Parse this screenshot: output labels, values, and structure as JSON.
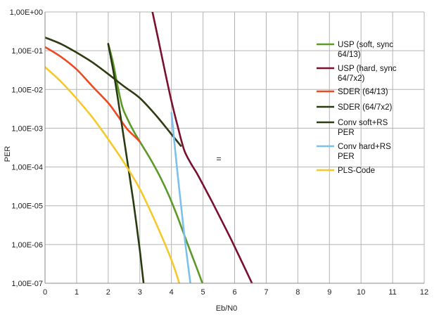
{
  "chart_data": {
    "type": "line",
    "title": "",
    "xlabel": "Eb/N0",
    "ylabel": "PER",
    "y_scale": "log",
    "xlim": [
      0,
      12
    ],
    "ylim": [
      1e-07,
      1
    ],
    "x_ticks": [
      "0",
      "1",
      "2",
      "3",
      "4",
      "5",
      "6",
      "7",
      "8",
      "9",
      "10",
      "11",
      "12"
    ],
    "y_ticks": [
      "1,00E-07",
      "1,00E-06",
      "1,00E-05",
      "1,00E-04",
      "1,00E-03",
      "1,00E-02",
      "1,00E-01",
      "1,00E+00"
    ],
    "grid": true,
    "legend_position": "right",
    "annotation": "=",
    "series": [
      {
        "name": "USP (soft, sync 64/13)",
        "color": "#5b9a26",
        "x": [
          2.0,
          2.15,
          2.3,
          2.45,
          2.6,
          2.8,
          3.0,
          3.3,
          3.6,
          3.9,
          4.2,
          4.5,
          4.8,
          4.98
        ],
        "y": [
          0.15,
          0.05,
          0.012,
          0.0035,
          0.0018,
          0.00085,
          0.00045,
          0.00018,
          6.5e-05,
          2e-05,
          5e-06,
          1.1e-06,
          2.5e-07,
          1e-07
        ]
      },
      {
        "name": "USP (hard, sync 64/7x2)",
        "color": "#7b0f2e",
        "x": [
          3.4,
          3.6,
          3.8,
          4.0,
          4.2,
          4.4,
          4.6,
          4.8,
          5.0,
          5.3,
          5.6,
          5.9,
          6.2,
          6.55
        ],
        "y": [
          1.0,
          0.17,
          0.028,
          0.005,
          0.0011,
          0.00028,
          0.00013,
          7e-05,
          3.5e-05,
          1.2e-05,
          4e-06,
          1.3e-06,
          4e-07,
          1e-07
        ]
      },
      {
        "name": "SDER (64/13)",
        "color": "#ee4a22",
        "x": [
          0.0,
          0.5,
          1.0,
          1.5,
          2.0,
          2.3,
          2.6,
          2.85,
          3.0
        ],
        "y": [
          0.125,
          0.07,
          0.033,
          0.012,
          0.0045,
          0.0021,
          0.00095,
          0.0006,
          0.00045
        ]
      },
      {
        "name": "SDER (64/7x2)",
        "color": "#2a3a10",
        "x": [
          2.0,
          2.2,
          2.4,
          2.6,
          2.8,
          3.0,
          3.12
        ],
        "y": [
          0.15,
          0.02,
          0.0018,
          0.00015,
          1.2e-05,
          7e-07,
          1e-07
        ]
      },
      {
        "name": "Conv soft+RS PER",
        "color": "#2f3c12",
        "x": [
          0.0,
          0.5,
          1.0,
          1.5,
          2.0,
          2.5,
          3.0,
          3.5,
          4.0,
          4.3
        ],
        "y": [
          0.22,
          0.15,
          0.09,
          0.05,
          0.025,
          0.012,
          0.006,
          0.0022,
          0.0007,
          0.00035
        ]
      },
      {
        "name": "Conv hard+RS PER",
        "color": "#7cc0ec",
        "x": [
          4.0,
          4.2,
          4.4,
          4.6
        ],
        "y": [
          0.0025,
          6e-05,
          2e-06,
          1e-07
        ]
      },
      {
        "name": "PLS-Code",
        "color": "#f5c92a",
        "x": [
          0.0,
          0.5,
          1.0,
          1.5,
          2.0,
          2.5,
          3.0,
          3.5,
          4.0,
          4.25
        ],
        "y": [
          0.038,
          0.016,
          0.0058,
          0.0019,
          0.00052,
          0.00013,
          2.7e-05,
          3.7e-06,
          4e-07,
          1e-07
        ]
      }
    ],
    "legend": [
      {
        "lines": [
          "USP (soft, sync",
          "64/13)"
        ],
        "color": "#5b9a26"
      },
      {
        "lines": [
          "USP (hard, sync",
          "64/7x2)"
        ],
        "color": "#7b0f2e"
      },
      {
        "lines": [
          "SDER (64/13)"
        ],
        "color": "#ee4a22"
      },
      {
        "lines": [
          "SDER (64/7x2)"
        ],
        "color": "#2a3a10"
      },
      {
        "lines": [
          "Conv soft+RS",
          "PER"
        ],
        "color": "#2f3c12"
      },
      {
        "lines": [
          "Conv hard+RS",
          "PER"
        ],
        "color": "#7cc0ec"
      },
      {
        "lines": [
          "PLS-Code"
        ],
        "color": "#f5c92a"
      }
    ]
  }
}
